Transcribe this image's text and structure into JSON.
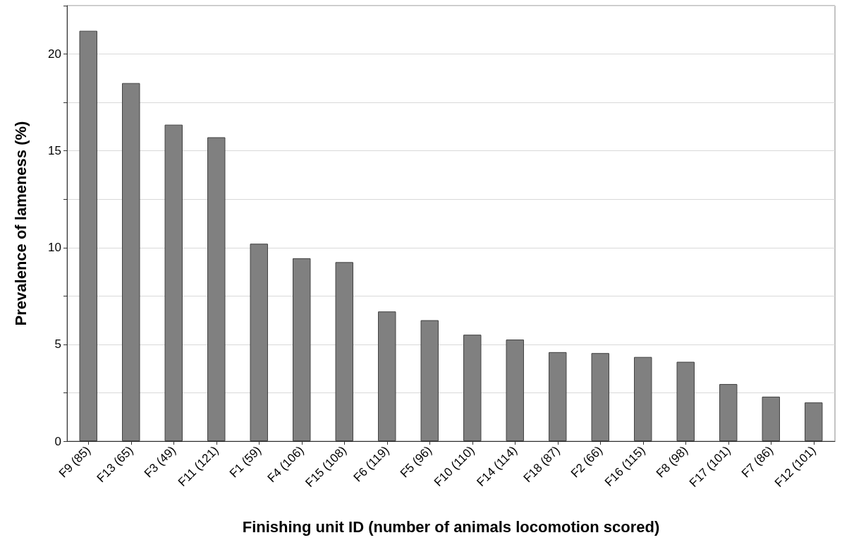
{
  "chart_data": {
    "type": "bar",
    "xlabel": "Finishing unit ID (number of animals locomotion scored)",
    "ylabel": "Prevalence of lameness (%)",
    "categories": [
      "F9 (85)",
      "F13 (65)",
      "F3 (49)",
      "F11 (121)",
      "F1 (59)",
      "F4 (106)",
      "F15 (108)",
      "F6 (119)",
      "F5 (96)",
      "F10 (110)",
      "F14 (114)",
      "F18 (87)",
      "F2 (66)",
      "F16 (115)",
      "F8 (98)",
      "F17 (101)",
      "F7 (86)",
      "F12 (101)"
    ],
    "values": [
      21.2,
      18.5,
      16.35,
      15.7,
      10.2,
      9.45,
      9.25,
      6.7,
      6.25,
      5.5,
      5.25,
      4.6,
      4.55,
      4.35,
      4.1,
      2.95,
      2.3,
      2.0
    ],
    "color": "#808080",
    "ylim": [
      0,
      22.5
    ],
    "yticks": [
      0,
      {
        "value": 2.5,
        "label": null
      },
      5,
      {
        "value": 7.5,
        "label": null
      },
      10,
      {
        "value": 12.5,
        "label": null
      },
      15,
      {
        "value": 17.5,
        "label": null
      },
      20,
      {
        "value": 22.5,
        "label": null
      }
    ],
    "grid": "y"
  }
}
